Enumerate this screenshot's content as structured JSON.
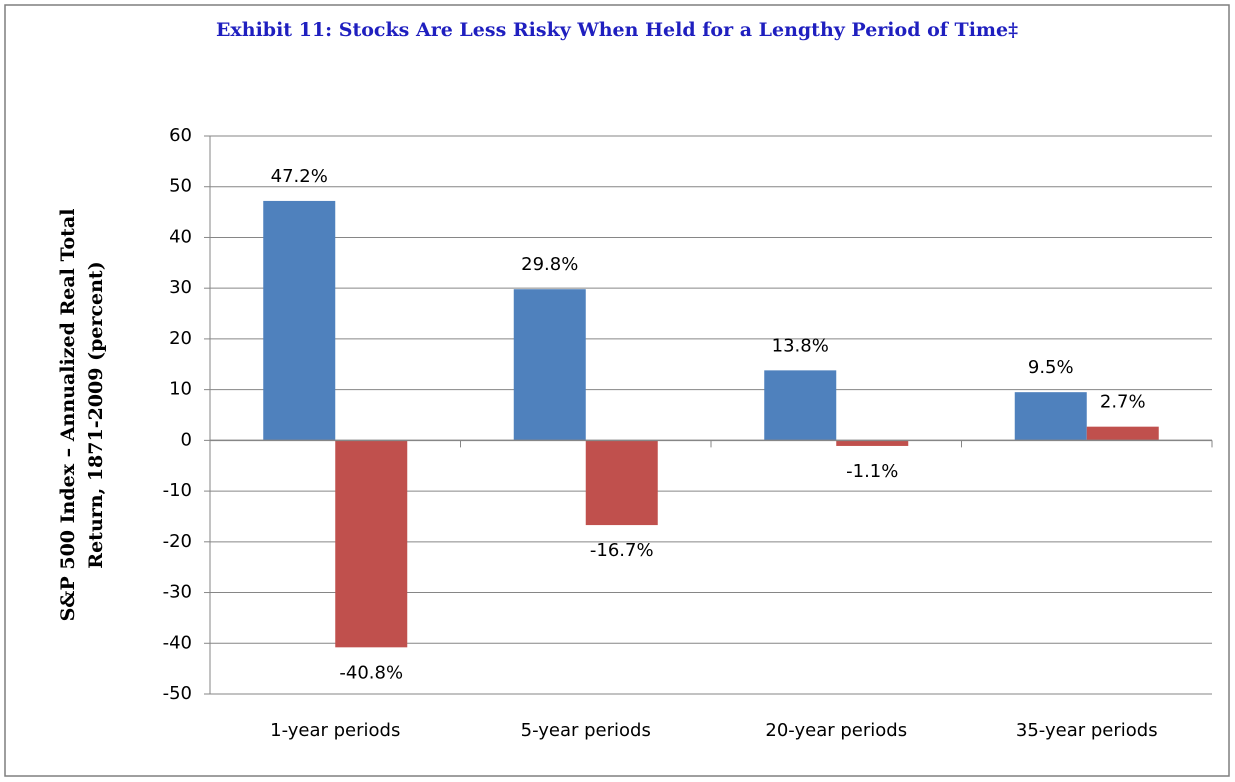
{
  "chart_data": {
    "type": "bar",
    "title": "Exhibit 11: Stocks Are Less Risky When Held for a Lengthy Period of Time‡",
    "ylabel": [
      "S&P 500 Index – Annualized Real Total",
      "Return, 1871-2009 (percent)"
    ],
    "categories": [
      "1-year periods",
      "5-year periods",
      "20-year periods",
      "35-year periods"
    ],
    "series": [
      {
        "color": "#4f81bd",
        "values": [
          47.2,
          29.8,
          13.8,
          9.5
        ],
        "value_labels": [
          "47.2%",
          "29.8%",
          "13.8%",
          "9.5%"
        ]
      },
      {
        "color": "#c0504d",
        "values": [
          -40.8,
          -16.7,
          -1.1,
          2.7
        ],
        "value_labels": [
          "-40.8%",
          "-16.7%",
          "-1.1%",
          "2.7%"
        ]
      }
    ],
    "ylim": [
      -50,
      60
    ],
    "yticks": [
      -50,
      -40,
      -30,
      -20,
      -10,
      0,
      10,
      20,
      30,
      40,
      50,
      60
    ],
    "grid": true
  }
}
